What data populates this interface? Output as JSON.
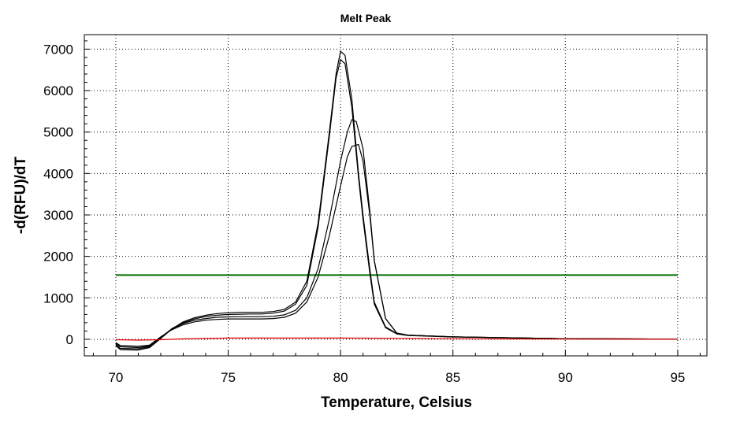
{
  "chart_data": {
    "type": "line",
    "title": "Melt Peak",
    "xlabel": "Temperature, Celsius",
    "ylabel": "-d(RFU)/dT",
    "xlim": [
      68.6,
      96.3
    ],
    "ylim": [
      -400,
      7350
    ],
    "xticks": [
      70,
      75,
      80,
      85,
      90,
      95
    ],
    "yticks": [
      0,
      1000,
      2000,
      3000,
      4000,
      5000,
      6000,
      7000
    ],
    "grid": true,
    "series": [
      {
        "color": "#000000",
        "x": [
          70,
          70.2,
          71,
          71.5,
          72,
          72.5,
          73,
          73.5,
          74,
          74.5,
          75,
          75.5,
          76,
          76.5,
          77,
          77.5,
          78,
          78.5,
          79,
          79.5,
          79.8,
          80,
          80.2,
          80.5,
          80.8,
          81,
          81.3,
          81.5,
          82,
          82.5,
          83,
          85,
          90,
          95
        ],
        "y": [
          -150,
          -250,
          -260,
          -200,
          20,
          250,
          420,
          520,
          580,
          620,
          640,
          650,
          650,
          650,
          670,
          720,
          900,
          1400,
          2800,
          5000,
          6400,
          6950,
          6850,
          5800,
          4000,
          3000,
          1700,
          900,
          300,
          140,
          100,
          60,
          15,
          5
        ]
      },
      {
        "color": "#000000",
        "x": [
          70,
          70.2,
          71,
          71.5,
          72,
          72.5,
          73,
          73.5,
          74,
          74.5,
          75,
          75.5,
          76,
          76.5,
          77,
          77.5,
          78,
          78.5,
          79,
          79.5,
          79.8,
          80,
          80.2,
          80.5,
          80.8,
          81,
          81.3,
          81.5,
          82,
          82.5,
          83,
          85,
          90,
          95
        ],
        "y": [
          -120,
          -220,
          -230,
          -180,
          40,
          260,
          400,
          490,
          550,
          580,
          600,
          605,
          610,
          610,
          630,
          680,
          850,
          1300,
          2700,
          4900,
          6300,
          6750,
          6650,
          5600,
          3900,
          2900,
          1600,
          850,
          280,
          130,
          90,
          55,
          15,
          5
        ]
      },
      {
        "color": "#000000",
        "x": [
          70,
          70.2,
          71,
          71.5,
          72,
          72.5,
          73,
          73.5,
          74,
          74.5,
          75,
          75.5,
          76,
          76.5,
          77,
          77.5,
          78,
          78.5,
          79,
          79.5,
          80,
          80.3,
          80.5,
          80.7,
          81,
          81.3,
          81.5,
          82,
          82.5,
          83,
          85,
          90,
          95
        ],
        "y": [
          -100,
          -180,
          -200,
          -160,
          50,
          250,
          380,
          460,
          500,
          530,
          540,
          545,
          545,
          545,
          555,
          590,
          700,
          1000,
          1700,
          2900,
          4300,
          5000,
          5300,
          5250,
          4600,
          3100,
          1900,
          500,
          150,
          100,
          60,
          15,
          5
        ]
      },
      {
        "color": "#000000",
        "x": [
          70,
          70.2,
          71,
          71.5,
          72,
          72.5,
          73,
          73.5,
          74,
          74.5,
          75,
          75.5,
          76,
          76.5,
          77,
          77.5,
          78,
          78.5,
          79,
          79.5,
          80,
          80.3,
          80.5,
          80.8,
          81,
          81.3,
          81.5,
          82,
          82.5,
          83,
          85,
          90,
          95
        ],
        "y": [
          -80,
          -150,
          -170,
          -140,
          60,
          230,
          350,
          420,
          460,
          480,
          490,
          490,
          490,
          490,
          500,
          530,
          630,
          900,
          1500,
          2500,
          3700,
          4400,
          4650,
          4700,
          4300,
          3000,
          1900,
          500,
          150,
          100,
          60,
          15,
          5
        ]
      },
      {
        "color": "#e00000",
        "x": [
          70,
          71,
          72,
          73,
          74,
          75,
          76,
          78,
          80,
          82,
          83,
          85,
          90,
          95
        ],
        "y": [
          -10,
          -20,
          -10,
          10,
          20,
          30,
          30,
          30,
          30,
          25,
          20,
          15,
          5,
          0
        ]
      }
    ],
    "threshold": {
      "y": 1550,
      "color": "#007000"
    }
  }
}
